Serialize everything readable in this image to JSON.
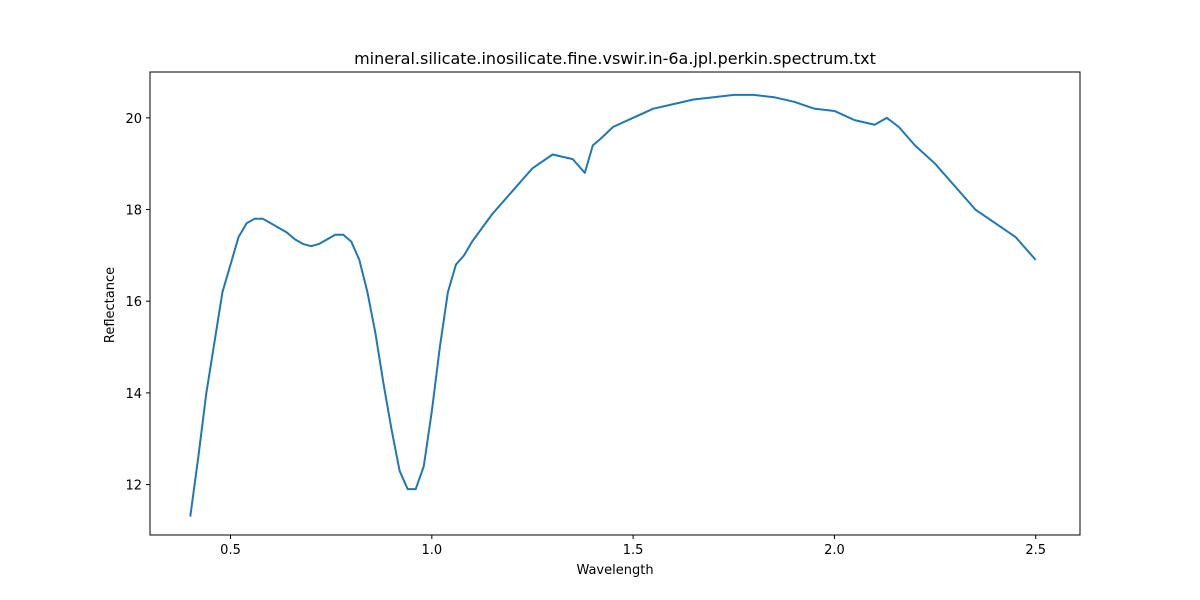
{
  "chart_data": {
    "type": "line",
    "title": "mineral.silicate.inosilicate.fine.vswir.in-6a.jpl.perkin.spectrum.txt",
    "xlabel": "Wavelength",
    "ylabel": "Reflectance",
    "xlim": [
      0.3,
      2.61
    ],
    "ylim": [
      10.9,
      21.0
    ],
    "xticks": [
      0.5,
      1.0,
      1.5,
      2.0,
      2.5
    ],
    "xtick_labels": [
      "0.5",
      "1.0",
      "1.5",
      "2.0",
      "2.5"
    ],
    "yticks": [
      12,
      14,
      16,
      18,
      20
    ],
    "ytick_labels": [
      "12",
      "14",
      "16",
      "18",
      "20"
    ],
    "grid": false,
    "line_color": "#1f77b4",
    "series": [
      {
        "x": [
          0.4,
          0.42,
          0.44,
          0.46,
          0.48,
          0.5,
          0.52,
          0.54,
          0.56,
          0.58,
          0.6,
          0.62,
          0.64,
          0.66,
          0.68,
          0.7,
          0.72,
          0.74,
          0.76,
          0.78,
          0.8,
          0.82,
          0.84,
          0.86,
          0.88,
          0.9,
          0.92,
          0.94,
          0.96,
          0.98,
          1.0,
          1.02,
          1.04,
          1.06,
          1.08,
          1.1,
          1.15,
          1.2,
          1.25,
          1.3,
          1.35,
          1.38,
          1.4,
          1.42,
          1.45,
          1.5,
          1.55,
          1.6,
          1.65,
          1.7,
          1.75,
          1.8,
          1.85,
          1.9,
          1.95,
          2.0,
          2.05,
          2.1,
          2.13,
          2.16,
          2.2,
          2.25,
          2.3,
          2.35,
          2.4,
          2.45,
          2.5
        ],
        "y": [
          11.3,
          12.6,
          14.0,
          15.1,
          16.2,
          16.8,
          17.4,
          17.7,
          17.8,
          17.8,
          17.7,
          17.6,
          17.5,
          17.35,
          17.25,
          17.2,
          17.25,
          17.35,
          17.45,
          17.45,
          17.3,
          16.9,
          16.2,
          15.3,
          14.2,
          13.2,
          12.3,
          11.9,
          11.9,
          12.4,
          13.6,
          15.0,
          16.2,
          16.8,
          17.0,
          17.3,
          17.9,
          18.4,
          18.9,
          19.2,
          19.1,
          18.8,
          19.4,
          19.55,
          19.8,
          20.0,
          20.2,
          20.3,
          20.4,
          20.45,
          20.5,
          20.5,
          20.45,
          20.35,
          20.2,
          20.15,
          19.95,
          19.85,
          20.0,
          19.8,
          19.4,
          19.0,
          18.5,
          18.0,
          17.7,
          17.4,
          16.9
        ]
      }
    ]
  }
}
